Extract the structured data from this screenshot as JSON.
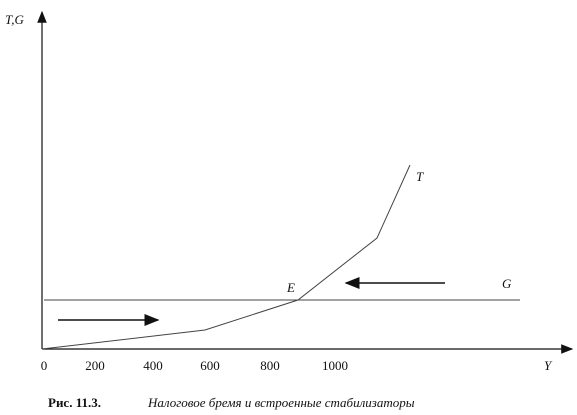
{
  "axes": {
    "y_label": "T,G",
    "x_label": "Y",
    "x_ticks": [
      "0",
      "200",
      "400",
      "600",
      "800",
      "1000"
    ]
  },
  "curves": {
    "tax": "T",
    "spending": "G",
    "equilibrium": "E"
  },
  "caption": {
    "number": "Рис. 11.3.",
    "text": "Налоговое бремя и встроенные стабилизаторы"
  }
}
